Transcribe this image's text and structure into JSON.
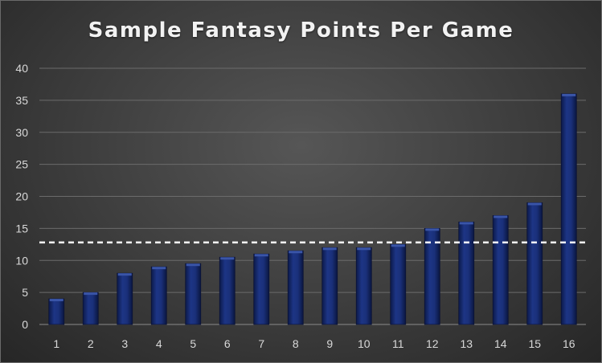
{
  "chart_data": {
    "type": "bar",
    "title": "Sample Fantasy Points Per Game",
    "xlabel": "",
    "ylabel": "",
    "categories": [
      "1",
      "2",
      "3",
      "4",
      "5",
      "6",
      "7",
      "8",
      "9",
      "10",
      "11",
      "12",
      "13",
      "14",
      "15",
      "16"
    ],
    "values": [
      4,
      5,
      8,
      9,
      9.5,
      10.5,
      11,
      11.5,
      12,
      12,
      12.5,
      15,
      16,
      17,
      19,
      36
    ],
    "ylim": [
      0,
      40
    ],
    "yticks": [
      "0",
      "5",
      "10",
      "15",
      "20",
      "25",
      "30",
      "35",
      "40"
    ],
    "reference_line": {
      "value": 12.8,
      "style": "dashed",
      "color": "#ffffff"
    },
    "grid": true,
    "legend": "none",
    "colors": {
      "bar": "#142a6e",
      "bar_highlight": "#3a55a8",
      "grid": "#6b6b6b",
      "text": "#d9d9d9"
    }
  }
}
